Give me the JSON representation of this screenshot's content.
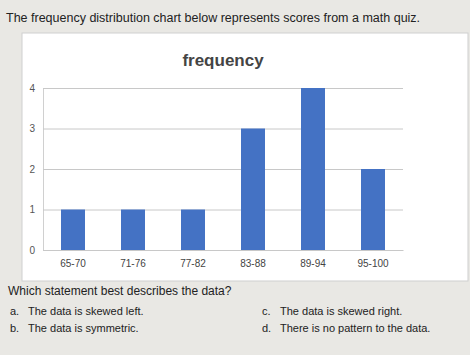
{
  "intro": "The frequency distribution chart below represents scores from a math quiz.",
  "chart_data": {
    "type": "bar",
    "title": "frequency",
    "categories": [
      "65-70",
      "71-76",
      "77-82",
      "83-88",
      "89-94",
      "95-100"
    ],
    "values": [
      1,
      1,
      1,
      3,
      4,
      2
    ],
    "color": "#4472c4",
    "ylim": [
      0,
      4
    ],
    "yticks": [
      0,
      1,
      2,
      3,
      4
    ],
    "grid": true
  },
  "question": "Which statement best describes the data?",
  "choices": [
    {
      "letter": "a.",
      "text": "The data is skewed left."
    },
    {
      "letter": "b.",
      "text": "The data is symmetric."
    },
    {
      "letter": "c.",
      "text": "The data is skewed right."
    },
    {
      "letter": "d.",
      "text": "There is no pattern to the data."
    }
  ]
}
